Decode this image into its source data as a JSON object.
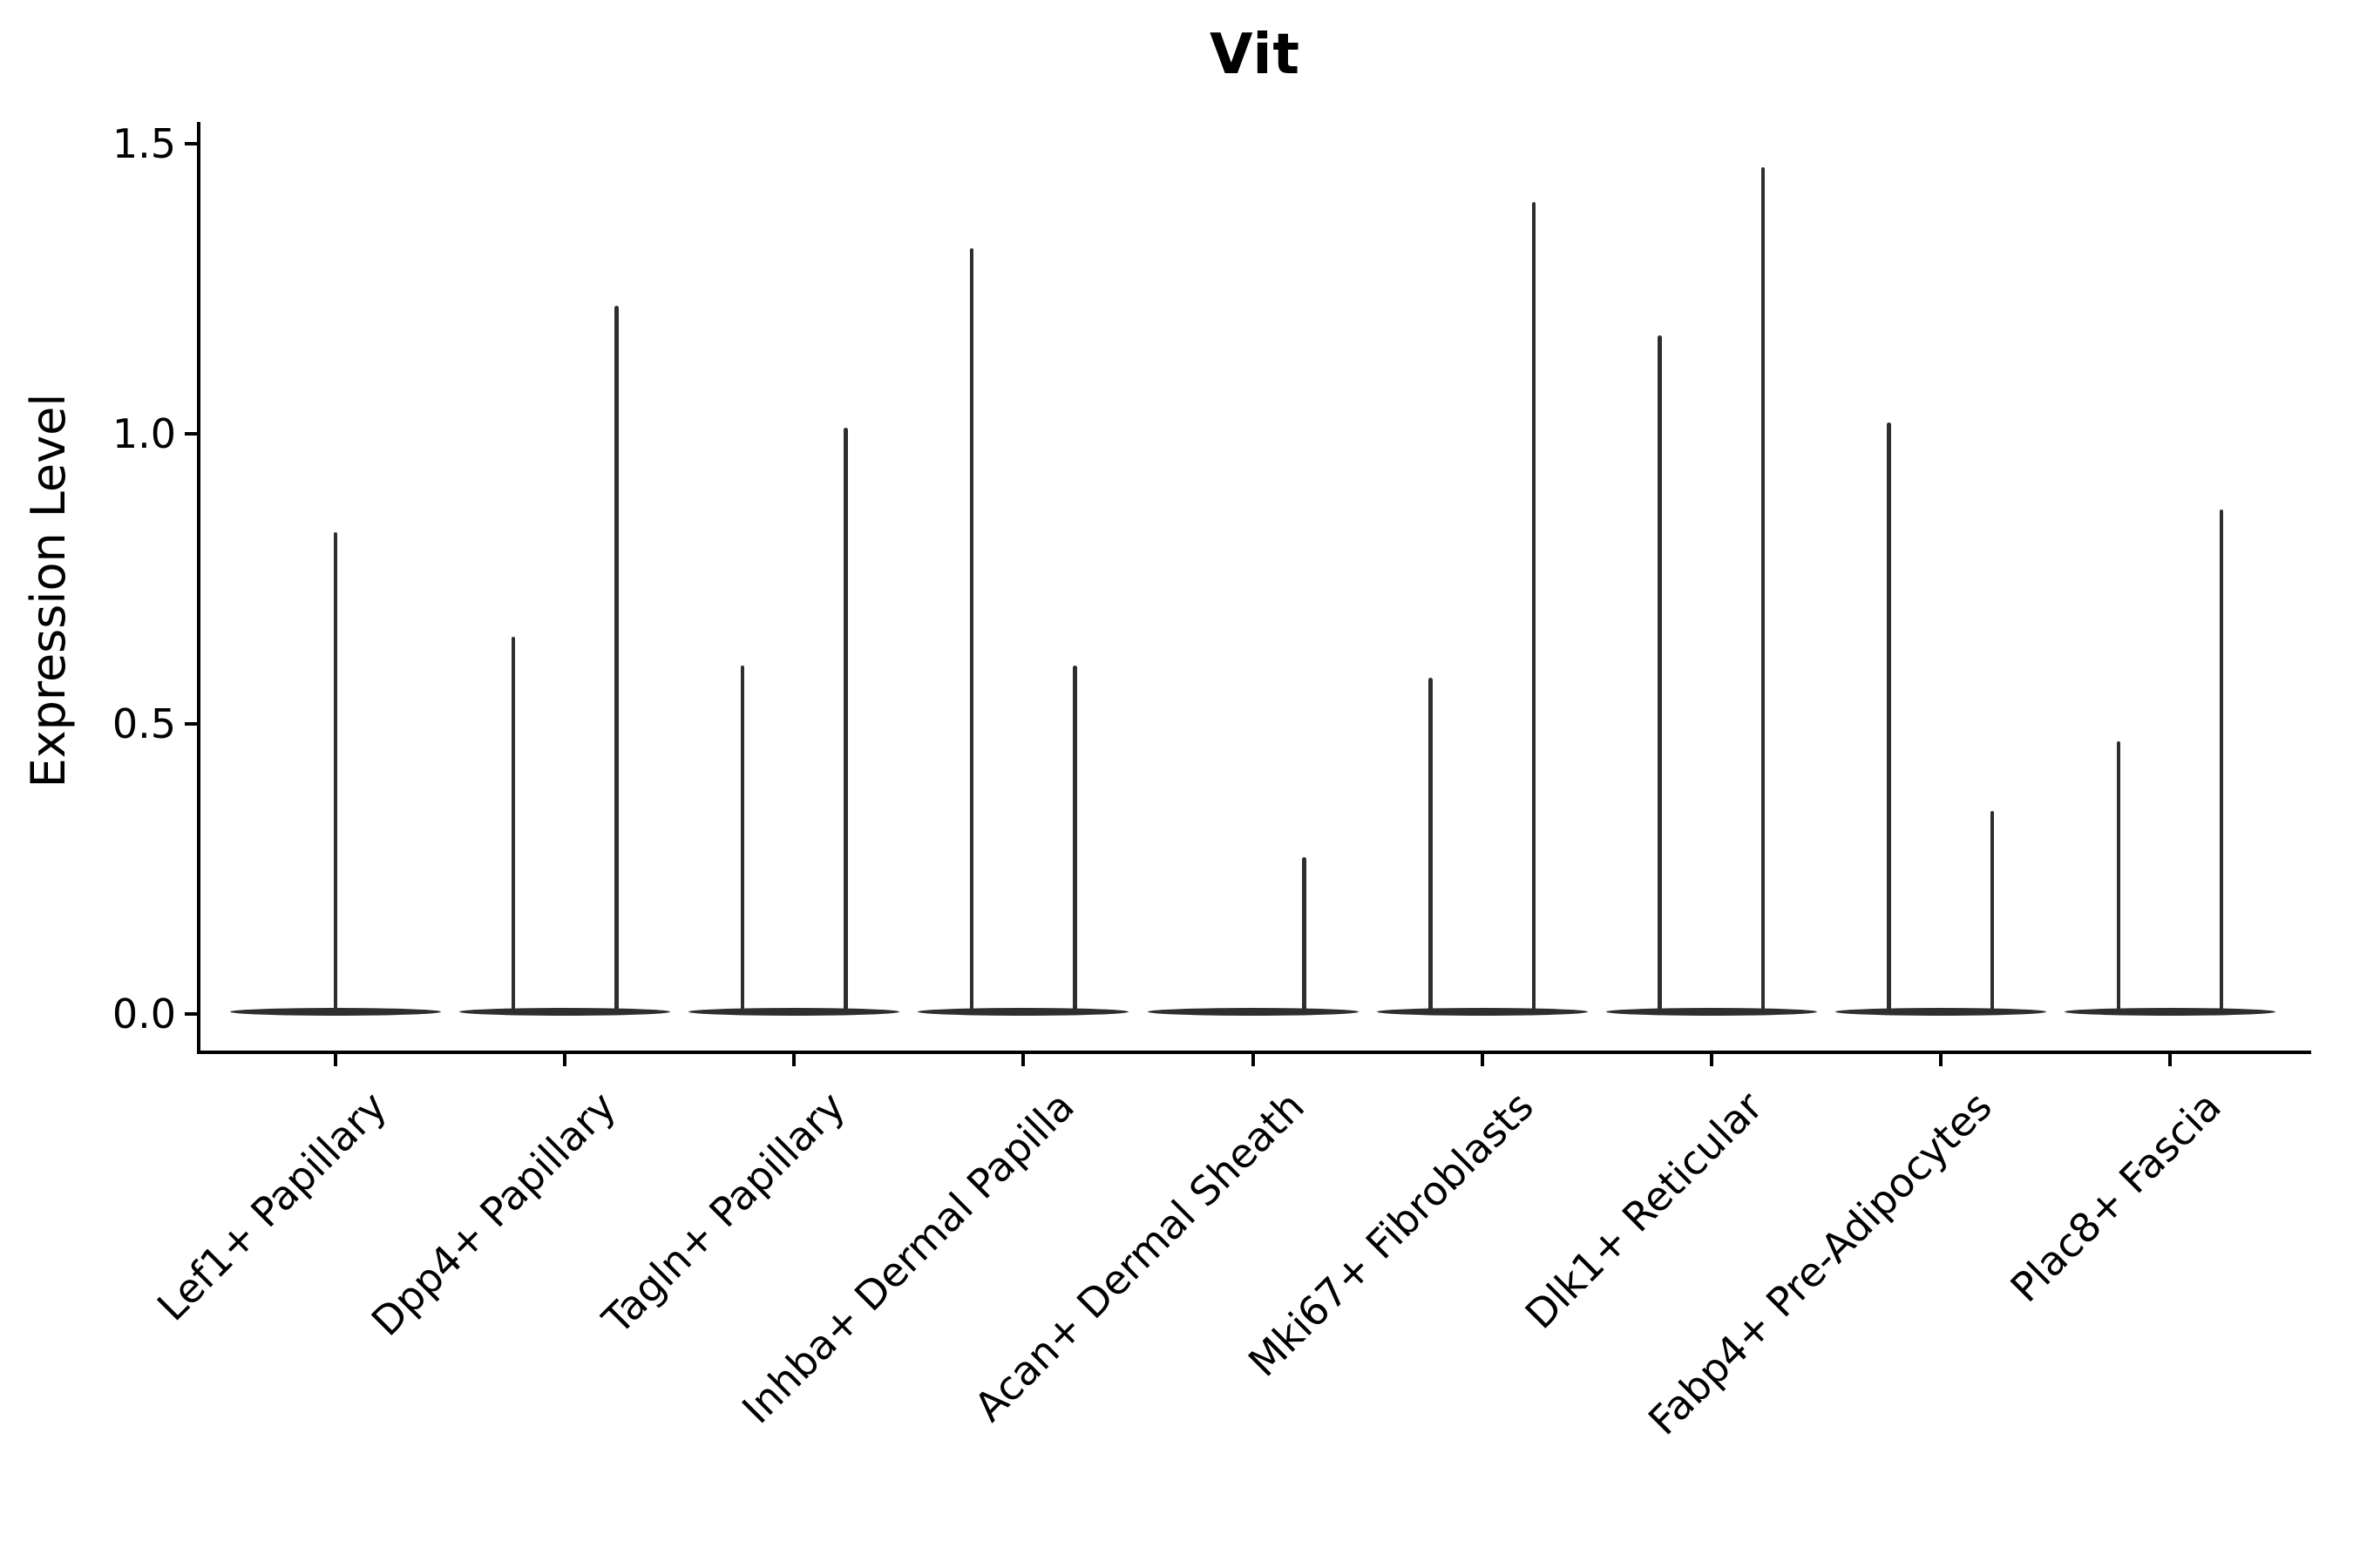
{
  "chart_data": {
    "type": "violin",
    "title": "Vit",
    "ylabel": "Expression Level",
    "xlabel": "",
    "grid": false,
    "legend": "none",
    "ylim": [
      -0.066,
      1.533
    ],
    "yticks": [
      {
        "label": "0.0",
        "value": 0.0
      },
      {
        "label": "0.5",
        "value": 0.5
      },
      {
        "label": "1.0",
        "value": 1.0
      },
      {
        "label": "1.5",
        "value": 1.5
      }
    ],
    "categories": [
      "Lef1+ Papillary",
      "Dpp4+ Papillary",
      "Tagln+ Papillary",
      "Inhba+ Dermal Papilla",
      "Acan+ Dermal Sheath",
      "Mki67+ Fibroblasts",
      "Dlk1+ Reticular",
      "Fabp4+ Pre-Adipocytes",
      "Plac8+ Fascia"
    ],
    "violins": [
      {
        "category": "Lef1+ Papillary",
        "baseline": 0.0,
        "spikes": [
          {
            "position": "center",
            "max": 0.83
          }
        ]
      },
      {
        "category": "Dpp4+ Papillary",
        "baseline": 0.0,
        "spikes": [
          {
            "position": "left",
            "max": 0.65
          },
          {
            "position": "right",
            "max": 1.22
          }
        ]
      },
      {
        "category": "Tagln+ Papillary",
        "baseline": 0.0,
        "spikes": [
          {
            "position": "left",
            "max": 0.6
          },
          {
            "position": "right",
            "max": 1.01
          }
        ]
      },
      {
        "category": "Inhba+ Dermal Papilla",
        "baseline": 0.0,
        "spikes": [
          {
            "position": "left",
            "max": 1.32
          },
          {
            "position": "right",
            "max": 0.6
          }
        ]
      },
      {
        "category": "Acan+ Dermal Sheath",
        "baseline": 0.0,
        "spikes": [
          {
            "position": "right",
            "max": 0.27
          }
        ]
      },
      {
        "category": "Mki67+ Fibroblasts",
        "baseline": 0.0,
        "spikes": [
          {
            "position": "left",
            "max": 0.58
          },
          {
            "position": "right",
            "max": 1.4
          }
        ]
      },
      {
        "category": "Dlk1+ Reticular",
        "baseline": 0.0,
        "spikes": [
          {
            "position": "left",
            "max": 1.17
          },
          {
            "position": "right",
            "max": 1.46
          }
        ]
      },
      {
        "category": "Fabp4+ Pre-Adipocytes",
        "baseline": 0.0,
        "spikes": [
          {
            "position": "left",
            "max": 1.02
          },
          {
            "position": "right",
            "max": 0.35
          }
        ]
      },
      {
        "category": "Plac8+ Fascia",
        "baseline": 0.0,
        "spikes": [
          {
            "position": "left",
            "max": 0.47
          },
          {
            "position": "right",
            "max": 0.87
          }
        ]
      }
    ],
    "style": {
      "violin_color": "#2e2e2e",
      "axis_color": "#000000",
      "background": "#ffffff",
      "text_color": "#000000"
    }
  }
}
